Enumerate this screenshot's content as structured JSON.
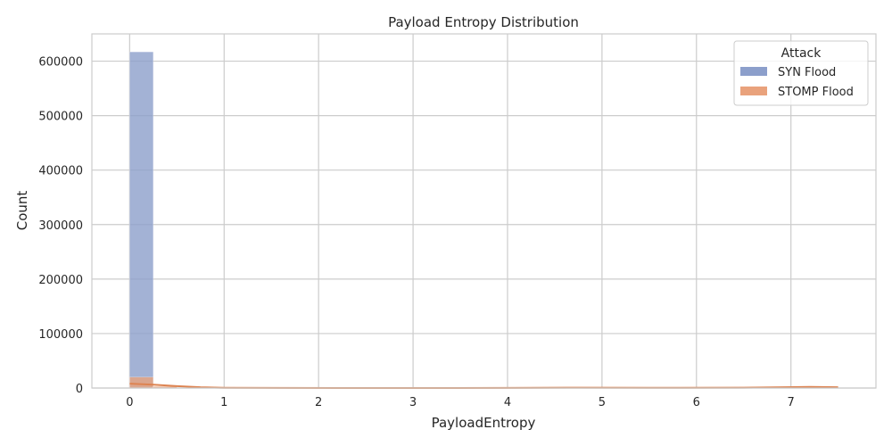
{
  "chart_data": {
    "type": "bar",
    "title": "Payload Entropy Distribution",
    "xlabel": "PayloadEntropy",
    "ylabel": "Count",
    "xlim": [
      -0.4,
      7.9
    ],
    "ylim": [
      0,
      650000
    ],
    "x_ticks": [
      0,
      1,
      2,
      3,
      4,
      5,
      6,
      7
    ],
    "y_ticks": [
      0,
      100000,
      200000,
      300000,
      400000,
      500000,
      600000
    ],
    "grid": true,
    "legend_title": "Attack",
    "legend_position": "top-right",
    "series": [
      {
        "name": "SYN Flood",
        "color": "#8c9fcb",
        "bins": [
          {
            "x0": 0.0,
            "x1": 0.25,
            "count": 617000
          }
        ]
      },
      {
        "name": "STOMP Flood",
        "color": "#e9a27c",
        "kde_color": "#dd8452",
        "bins": [
          {
            "x0": 0.0,
            "x1": 0.25,
            "count": 20000
          },
          {
            "x0": 0.25,
            "x1": 0.5,
            "count": 3000
          },
          {
            "x0": 4.5,
            "x1": 5.0,
            "count": 1000
          },
          {
            "x0": 7.0,
            "x1": 7.5,
            "count": 2000
          }
        ],
        "kde": [
          {
            "x": 0.0,
            "y": 8000
          },
          {
            "x": 0.25,
            "y": 6000
          },
          {
            "x": 0.5,
            "y": 3500
          },
          {
            "x": 0.75,
            "y": 1500
          },
          {
            "x": 1.0,
            "y": 500
          },
          {
            "x": 1.5,
            "y": 150
          },
          {
            "x": 2.5,
            "y": 80
          },
          {
            "x": 4.0,
            "y": 200
          },
          {
            "x": 4.75,
            "y": 700
          },
          {
            "x": 5.5,
            "y": 300
          },
          {
            "x": 6.5,
            "y": 700
          },
          {
            "x": 7.2,
            "y": 2000
          },
          {
            "x": 7.5,
            "y": 1500
          }
        ]
      }
    ]
  }
}
